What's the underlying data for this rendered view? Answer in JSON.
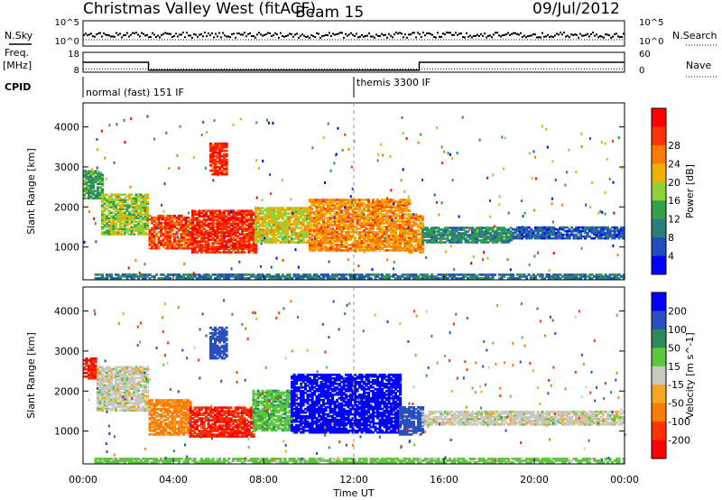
{
  "header": {
    "station": "Christmas Valley West (fitACF)",
    "beam": "Beam 15",
    "date": "09/Jul/2012"
  },
  "chart_data": [
    {
      "type": "line",
      "panel": "noise",
      "labels": {
        "left": "N.Sky",
        "right": "N.Search"
      },
      "y_ticks_left": [
        "10^5",
        "10^0"
      ],
      "y_ticks_right": [
        "10^5",
        "10^0"
      ],
      "note": "N.Sky near 10^1–10^2 throughout; N.Search flat near 10^1"
    },
    {
      "type": "line",
      "panel": "frequency",
      "labels": {
        "left_top": "Freq.",
        "left_unit": "[MHz]",
        "right": "Nave"
      },
      "y_ticks_left": [
        "18",
        "8"
      ],
      "y_ticks_right": [
        "60",
        "0"
      ],
      "freq_series": [
        {
          "x": 0.0,
          "y": 13
        },
        {
          "x": 2.9,
          "y": 13
        },
        {
          "x": 2.9,
          "y": 9
        },
        {
          "x": 14.9,
          "y": 9
        },
        {
          "x": 14.9,
          "y": 13
        },
        {
          "x": 24.0,
          "y": 13
        }
      ],
      "nave_level": 10
    },
    {
      "type": "table",
      "panel": "cpid",
      "label": "CPID",
      "segments": [
        {
          "start_hour": 0.0,
          "text": "normal (fast) 151 IF"
        },
        {
          "start_hour": 12.0,
          "text": "themis 3300 IF"
        }
      ]
    },
    {
      "type": "heatmap",
      "panel": "power",
      "ylabel": "Slant Range [km]",
      "xlim": [
        0,
        24
      ],
      "ylim": [
        180,
        4600
      ],
      "y_ticks": [
        1000,
        2000,
        3000,
        4000
      ],
      "colorbar": {
        "label": "Power [dB]",
        "ticks": [
          4,
          8,
          12,
          16,
          20,
          24,
          28
        ],
        "colors": [
          "#0000ff",
          "#1f4fbf",
          "#2e7d7d",
          "#35a04a",
          "#8fd13a",
          "#f0b000",
          "#ff7a00",
          "#ff3300",
          "#ff0000"
        ]
      },
      "regions": [
        {
          "t0": 0.0,
          "t1": 0.8,
          "r0": 2200,
          "r1": 2900,
          "level": 12
        },
        {
          "t0": 0.8,
          "t1": 2.9,
          "r0": 1300,
          "r1": 2300,
          "level": 16
        },
        {
          "t0": 2.9,
          "t1": 4.8,
          "r0": 950,
          "r1": 1800,
          "level": 26
        },
        {
          "t0": 4.8,
          "t1": 7.6,
          "r0": 850,
          "r1": 1900,
          "level": 28
        },
        {
          "t0": 5.6,
          "t1": 6.3,
          "r0": 2800,
          "r1": 3600,
          "level": 28
        },
        {
          "t0": 7.6,
          "t1": 10.0,
          "r0": 1100,
          "r1": 2000,
          "level": 18
        },
        {
          "t0": 10.0,
          "t1": 14.4,
          "r0": 900,
          "r1": 2200,
          "level": 22
        },
        {
          "t0": 14.4,
          "t1": 15.0,
          "r0": 850,
          "r1": 1800,
          "level": 22
        },
        {
          "t0": 15.0,
          "t1": 19.0,
          "r0": 1100,
          "r1": 1500,
          "level": 10
        },
        {
          "t0": 19.0,
          "t1": 24.0,
          "r0": 1200,
          "r1": 1500,
          "level": 6
        },
        {
          "t0": 0.5,
          "t1": 24.0,
          "r0": 200,
          "r1": 320,
          "level": 8
        }
      ]
    },
    {
      "type": "heatmap",
      "panel": "velocity",
      "ylabel": "Slant Range [km]",
      "xlabel": "Time UT",
      "xlim": [
        0,
        24
      ],
      "x_ticks": [
        "00:00",
        "04:00",
        "08:00",
        "12:00",
        "16:00",
        "20:00",
        "00:00"
      ],
      "ylim": [
        180,
        4600
      ],
      "y_ticks": [
        1000,
        2000,
        3000,
        4000
      ],
      "colorbar": {
        "label": "Velocity [m s^-1]",
        "ticks": [
          200,
          100,
          50,
          15,
          -15,
          -50,
          -100,
          -200
        ],
        "colors": [
          "#0000ff",
          "#2a4fbf",
          "#2e8b57",
          "#5ac83a",
          "#c8c8c0",
          "#f5a623",
          "#ff7a00",
          "#ff3300",
          "#ff0000"
        ]
      },
      "regions": [
        {
          "t0": 0.0,
          "t1": 0.6,
          "r0": 2300,
          "r1": 2800,
          "v": -200
        },
        {
          "t0": 0.6,
          "t1": 2.9,
          "r0": 1500,
          "r1": 2600,
          "v": 0
        },
        {
          "t0": 2.9,
          "t1": 4.7,
          "r0": 900,
          "r1": 1800,
          "v": -60
        },
        {
          "t0": 4.7,
          "t1": 7.5,
          "r0": 850,
          "r1": 1600,
          "v": -200
        },
        {
          "t0": 5.6,
          "t1": 6.3,
          "r0": 2800,
          "r1": 3600,
          "v": 150
        },
        {
          "t0": 7.5,
          "t1": 9.2,
          "r0": 1000,
          "r1": 2000,
          "v": 40
        },
        {
          "t0": 9.2,
          "t1": 14.0,
          "r0": 950,
          "r1": 2400,
          "v": 220
        },
        {
          "t0": 14.0,
          "t1": 15.0,
          "r0": 900,
          "r1": 1600,
          "v": 120
        },
        {
          "t0": 15.0,
          "t1": 24.0,
          "r0": 1150,
          "r1": 1500,
          "v": 0
        },
        {
          "t0": 0.5,
          "t1": 24.0,
          "r0": 200,
          "r1": 320,
          "v": 30
        }
      ]
    }
  ]
}
